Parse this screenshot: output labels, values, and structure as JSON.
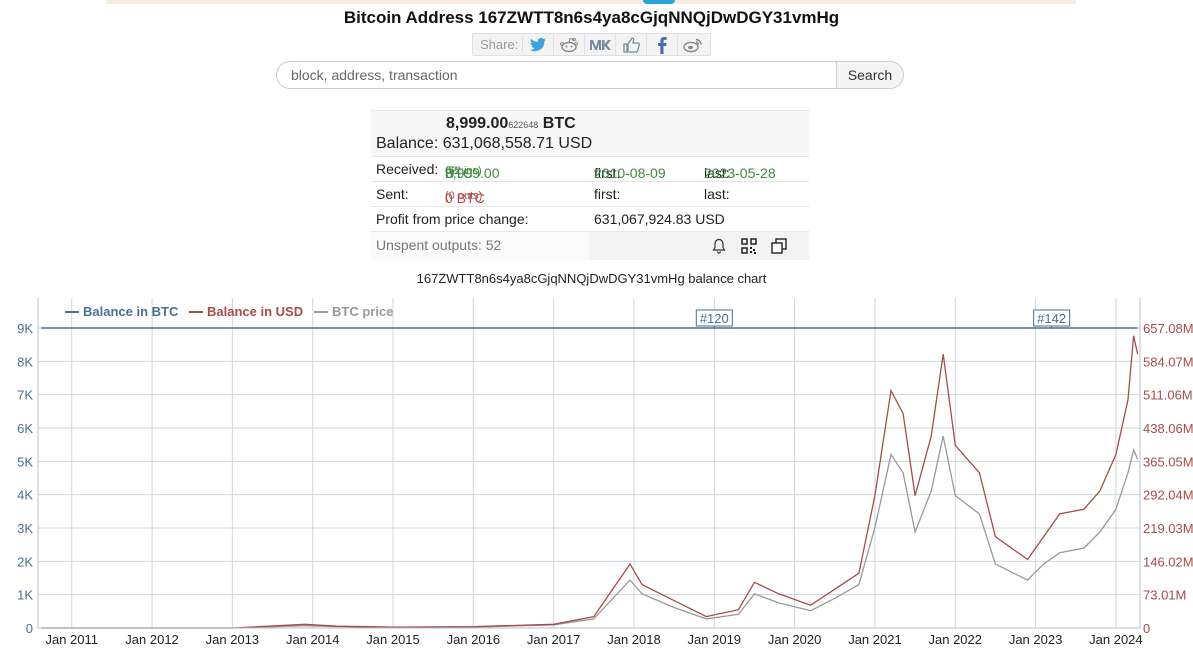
{
  "page": {
    "title": "Bitcoin Address 167ZWTT8n6s4ya8cGjqNNQjDwDGY31vmHg"
  },
  "share": {
    "label": "Share:",
    "buttons": [
      "twitter-icon",
      "reddit-icon",
      "vk-icon",
      "like-icon",
      "facebook-icon",
      "weibo-icon"
    ]
  },
  "search": {
    "placeholder": "block, address, transaction",
    "button_label": "Search"
  },
  "balance": {
    "btc_main": "8,999.00",
    "btc_sats": "622648",
    "btc_unit": "BTC",
    "label": "Balance:",
    "usd": "631,068,558.71 USD"
  },
  "received": {
    "label": "Received:",
    "amount": "8,999.00",
    "sats": "62",
    "unit": "BTC",
    "ins": "(52 ins)",
    "first_label": "first:",
    "first_value": "2010-08-09",
    "last_label": "last:",
    "last_value": "2023-05-28"
  },
  "sent": {
    "label": "Sent:",
    "amount": "0 BTC",
    "outs": "(0 outs)",
    "first_label": "first:",
    "last_label": "last:"
  },
  "profit": {
    "label": "Profit from price change:",
    "value": "631,067,924.83 USD"
  },
  "unspent": {
    "label": "Unspent outputs: 52",
    "icons": [
      "bell-icon",
      "qr-code-icon",
      "copy-icon"
    ]
  },
  "chart_title": "167ZWTT8n6s4ya8cGjqNNQjDwDGY31vmHg balance chart",
  "chart_data": {
    "type": "line",
    "title": "167ZWTT8n6s4ya8cGjqNNQjDwDGY31vmHg balance chart",
    "legend": [
      "Balance in BTC",
      "Balance in USD",
      "BTC price"
    ],
    "legend_placement": "top-left",
    "colors": {
      "btc": "#4a6f96",
      "usd": "#a84b4b",
      "price": "#999999",
      "grid": "#cfd6de"
    },
    "x_ticks": [
      "Jan 2011",
      "Jan 2012",
      "Jan 2013",
      "Jan 2014",
      "Jan 2015",
      "Jan 2016",
      "Jan 2017",
      "Jan 2018",
      "Jan 2019",
      "Jan 2020",
      "Jan 2021",
      "Jan 2022",
      "Jan 2023",
      "Jan 2024"
    ],
    "xlim": [
      2010.58,
      2024.3
    ],
    "y_left_ticks": [
      "0",
      "1K",
      "2K",
      "3K",
      "4K",
      "5K",
      "6K",
      "7K",
      "8K",
      "9K"
    ],
    "ylim_left": [
      0,
      9000
    ],
    "y_right_ticks": [
      "0",
      "73.01M",
      "146.02M",
      "219.03M",
      "292.04M",
      "365.05M",
      "438.06M",
      "511.06M",
      "584.07M",
      "657.08M"
    ],
    "ylim_right": [
      0,
      657080000
    ],
    "grid": true,
    "annotations": [
      {
        "label": "#120",
        "x": 2019.0
      },
      {
        "label": "#142",
        "x": 2023.2
      }
    ],
    "series": [
      {
        "name": "Balance in BTC",
        "axis": "left",
        "points": [
          [
            2010.62,
            8999
          ],
          [
            2024.27,
            8999
          ]
        ]
      },
      {
        "name": "Balance in USD",
        "axis": "right",
        "points": [
          [
            2010.62,
            0
          ],
          [
            2013.0,
            100000
          ],
          [
            2013.9,
            8000000
          ],
          [
            2014.3,
            4000000
          ],
          [
            2015.0,
            2000000
          ],
          [
            2016.0,
            3000000
          ],
          [
            2017.0,
            8000000
          ],
          [
            2017.5,
            25000000
          ],
          [
            2017.95,
            140000000
          ],
          [
            2018.1,
            95000000
          ],
          [
            2018.5,
            60000000
          ],
          [
            2018.9,
            25000000
          ],
          [
            2019.3,
            40000000
          ],
          [
            2019.5,
            100000000
          ],
          [
            2019.8,
            75000000
          ],
          [
            2020.2,
            50000000
          ],
          [
            2020.5,
            85000000
          ],
          [
            2020.8,
            120000000
          ],
          [
            2021.0,
            290000000
          ],
          [
            2021.2,
            520000000
          ],
          [
            2021.35,
            470000000
          ],
          [
            2021.5,
            290000000
          ],
          [
            2021.7,
            420000000
          ],
          [
            2021.85,
            600000000
          ],
          [
            2022.0,
            400000000
          ],
          [
            2022.3,
            340000000
          ],
          [
            2022.5,
            200000000
          ],
          [
            2022.9,
            150000000
          ],
          [
            2023.1,
            200000000
          ],
          [
            2023.3,
            250000000
          ],
          [
            2023.6,
            260000000
          ],
          [
            2023.8,
            300000000
          ],
          [
            2024.0,
            380000000
          ],
          [
            2024.15,
            500000000
          ],
          [
            2024.22,
            640000000
          ],
          [
            2024.27,
            600000000
          ]
        ]
      },
      {
        "name": "BTC price",
        "axis": "right",
        "points": [
          [
            2010.62,
            0
          ],
          [
            2013.0,
            100000
          ],
          [
            2013.9,
            5000000
          ],
          [
            2014.3,
            3000000
          ],
          [
            2015.0,
            1500000
          ],
          [
            2016.0,
            2000000
          ],
          [
            2017.0,
            7000000
          ],
          [
            2017.5,
            20000000
          ],
          [
            2017.95,
            105000000
          ],
          [
            2018.1,
            75000000
          ],
          [
            2018.5,
            45000000
          ],
          [
            2018.9,
            20000000
          ],
          [
            2019.3,
            30000000
          ],
          [
            2019.5,
            75000000
          ],
          [
            2019.8,
            55000000
          ],
          [
            2020.2,
            38000000
          ],
          [
            2020.5,
            65000000
          ],
          [
            2020.8,
            95000000
          ],
          [
            2021.0,
            220000000
          ],
          [
            2021.2,
            380000000
          ],
          [
            2021.35,
            340000000
          ],
          [
            2021.5,
            210000000
          ],
          [
            2021.7,
            300000000
          ],
          [
            2021.85,
            420000000
          ],
          [
            2022.0,
            290000000
          ],
          [
            2022.3,
            250000000
          ],
          [
            2022.5,
            140000000
          ],
          [
            2022.9,
            105000000
          ],
          [
            2023.1,
            140000000
          ],
          [
            2023.3,
            165000000
          ],
          [
            2023.6,
            175000000
          ],
          [
            2023.8,
            210000000
          ],
          [
            2024.0,
            260000000
          ],
          [
            2024.15,
            340000000
          ],
          [
            2024.22,
            390000000
          ],
          [
            2024.27,
            370000000
          ]
        ]
      }
    ]
  }
}
